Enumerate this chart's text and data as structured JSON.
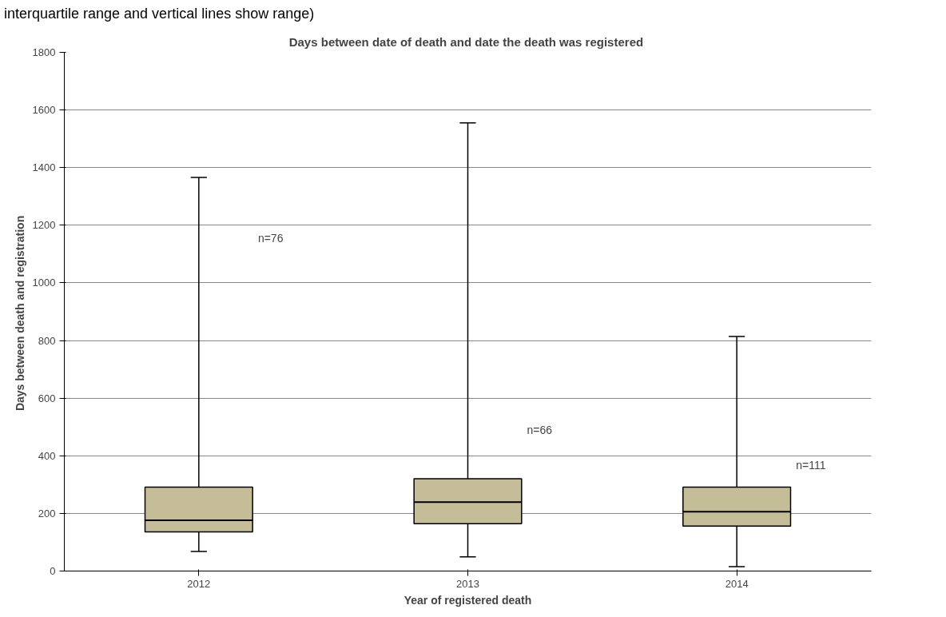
{
  "chart_data": {
    "type": "box",
    "title": "Days between  date of death and date the death was registered",
    "xlabel": "Year of registered death",
    "ylabel": "Days  between death and registration",
    "categories": [
      "2012",
      "2013",
      "2014"
    ],
    "boxes": [
      {
        "low": 68,
        "q1": 136,
        "median": 176,
        "q3": 291,
        "high": 1366
      },
      {
        "low": 49,
        "q1": 164,
        "median": 239,
        "q3": 320,
        "high": 1555
      },
      {
        "low": 15,
        "q1": 156,
        "median": 206,
        "q3": 291,
        "high": 814
      }
    ],
    "color": "#c4bd97",
    "ylim": [
      0,
      1800
    ],
    "yticks": [
      0,
      200,
      400,
      600,
      800,
      1000,
      1200,
      1400,
      1600,
      1800
    ],
    "grid": "y",
    "annotations": [
      "interquartile range and vertical lines show range)",
      "n=76",
      "n=66",
      "n=111"
    ]
  }
}
